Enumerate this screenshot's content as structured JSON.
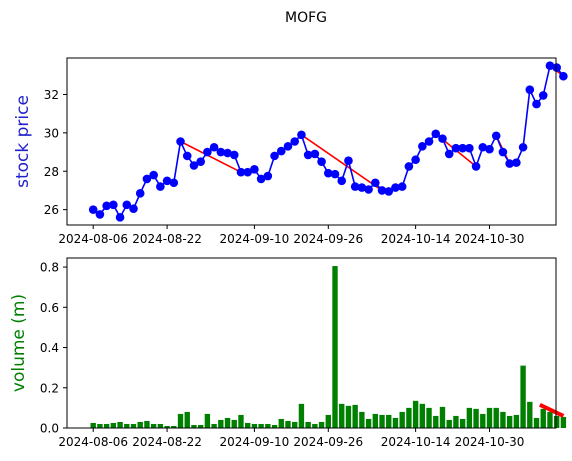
{
  "chart_data": [
    {
      "type": "line",
      "title": "MOFG",
      "ylabel": "stock price",
      "ylabel_color": "#1f1fcc",
      "ylim": [
        25.2,
        33.9
      ],
      "yticks": [
        26,
        28,
        30,
        32
      ],
      "xticks": [
        "2024-08-06",
        "2024-08-22",
        "2024-09-10",
        "2024-09-26",
        "2024-10-14",
        "2024-10-30"
      ],
      "x_index_range": [
        -3.9,
        68.9
      ],
      "line_color": "#0000ff",
      "marker_color": "#0000ff",
      "trend_color": "#ff0000",
      "series": [
        {
          "values": [
            26.0,
            25.75,
            26.2,
            26.25,
            25.6,
            26.25,
            26.05,
            26.85,
            27.6,
            27.8,
            27.2,
            27.5,
            27.4,
            29.55,
            28.8,
            28.3,
            28.5,
            29.0,
            29.25,
            29.0,
            28.95,
            28.85,
            27.95,
            27.95,
            28.1,
            27.6,
            27.75,
            28.8,
            29.05,
            29.3,
            29.55,
            29.9,
            28.85,
            28.9,
            28.5,
            27.9,
            27.85,
            27.5,
            28.55,
            27.2,
            27.15,
            27.05,
            27.4,
            27.0,
            26.95,
            27.15,
            27.2,
            28.25,
            28.6,
            29.3,
            29.55,
            29.95,
            29.7,
            28.9,
            29.2,
            29.2,
            29.2,
            28.25,
            29.25,
            29.15,
            29.85,
            29.0,
            28.4,
            28.45,
            29.25,
            32.25,
            31.5,
            31.95,
            33.5,
            33.4,
            32.95
          ]
        }
      ],
      "trend_segments": [
        {
          "x": [
            13,
            22
          ],
          "y": [
            29.55,
            27.95
          ]
        },
        {
          "x": [
            31,
            43
          ],
          "y": [
            29.9,
            27.0
          ]
        },
        {
          "x": [
            51,
            57
          ],
          "y": [
            29.95,
            28.25
          ]
        },
        {
          "x": [
            60,
            62
          ],
          "y": [
            29.85,
            28.4
          ]
        },
        {
          "x": [
            68,
            70
          ],
          "y": [
            33.5,
            32.95
          ]
        }
      ]
    },
    {
      "type": "bar",
      "ylabel": "volume (m)",
      "ylabel_color": "#008000",
      "ylim": [
        0,
        0.845
      ],
      "yticks": [
        0.0,
        0.2,
        0.4,
        0.6,
        0.8
      ],
      "ytick_labels": [
        "0.0",
        "0.2",
        "0.4",
        "0.6",
        "0.8"
      ],
      "xticks": [
        "2024-08-06",
        "2024-08-22",
        "2024-09-10",
        "2024-09-26",
        "2024-10-14",
        "2024-10-30"
      ],
      "x_index_range": [
        -3.9,
        68.9
      ],
      "bar_color": "#008000",
      "trend_color": "#ff0000",
      "values": [
        0.025,
        0.02,
        0.02,
        0.025,
        0.03,
        0.02,
        0.02,
        0.03,
        0.035,
        0.02,
        0.02,
        0.01,
        0.01,
        0.07,
        0.08,
        0.015,
        0.015,
        0.07,
        0.02,
        0.04,
        0.05,
        0.04,
        0.065,
        0.025,
        0.02,
        0.02,
        0.02,
        0.015,
        0.045,
        0.035,
        0.03,
        0.12,
        0.03,
        0.02,
        0.03,
        0.065,
        0.805,
        0.12,
        0.11,
        0.115,
        0.08,
        0.045,
        0.07,
        0.065,
        0.065,
        0.05,
        0.08,
        0.1,
        0.135,
        0.12,
        0.1,
        0.06,
        0.105,
        0.04,
        0.06,
        0.045,
        0.1,
        0.095,
        0.07,
        0.1,
        0.1,
        0.08,
        0.06,
        0.065,
        0.31,
        0.13,
        0.05,
        0.095,
        0.08,
        0.06,
        0.055
      ],
      "trend_segments": [
        {
          "x": [
            66.5,
            70
          ],
          "y": [
            0.115,
            0.06
          ]
        }
      ]
    }
  ]
}
